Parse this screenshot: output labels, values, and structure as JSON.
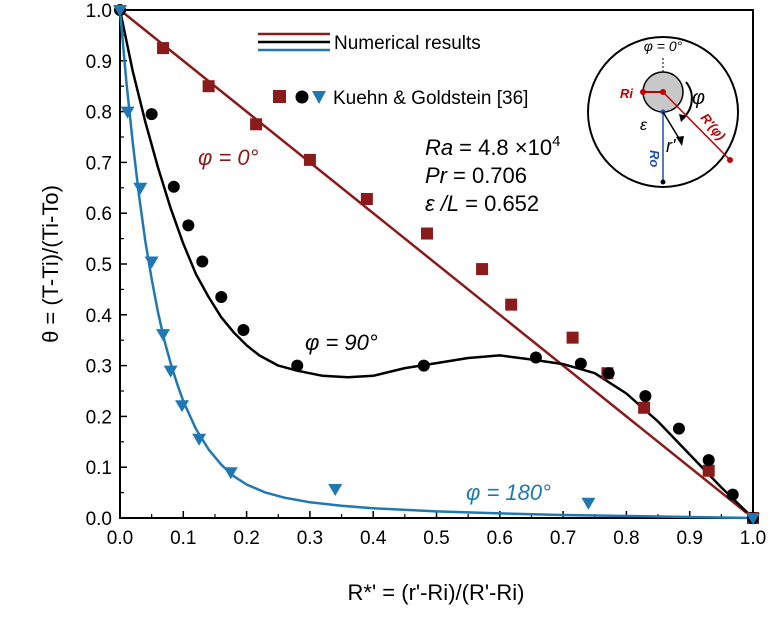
{
  "chart_data": {
    "type": "line",
    "xlabel": "R*' = (r'-Ri)/(R'-Ri)",
    "ylabel": "θ = (T-Ti)/(Ti-To)",
    "xlim": [
      0.0,
      1.0
    ],
    "ylim": [
      0.0,
      1.0
    ],
    "xticks": [
      "0.0",
      "0.1",
      "0.2",
      "0.3",
      "0.4",
      "0.5",
      "0.6",
      "0.7",
      "0.8",
      "0.9",
      "1.0"
    ],
    "yticks": [
      "0.0",
      "0.1",
      "0.2",
      "0.3",
      "0.4",
      "0.5",
      "0.6",
      "0.7",
      "0.8",
      "0.9",
      "1.0"
    ],
    "grid": false,
    "legend": {
      "position": "top",
      "entries": [
        "Numerical results",
        "Kuehn & Goldstein [36]"
      ]
    },
    "parameters": {
      "ra_label": "Ra",
      "ra_value": "= 4.8 ×10",
      "ra_exp": "4",
      "pr_label": "Pr",
      "pr_value": "= 0.706",
      "eps_label": "ε /L",
      "eps_value": "= 0.652"
    },
    "series": [
      {
        "name": "φ = 0°",
        "color": "#8b1a1a",
        "line_x": [
          0.0,
          1.0
        ],
        "line_y": [
          1.0,
          0.0
        ],
        "marker": "square",
        "exp_x": [
          0.068,
          0.14,
          0.215,
          0.3,
          0.39,
          0.485,
          0.572,
          0.618,
          0.715,
          0.77,
          0.828,
          0.93,
          1.0
        ],
        "exp_y": [
          0.925,
          0.85,
          0.775,
          0.705,
          0.628,
          0.56,
          0.49,
          0.42,
          0.355,
          0.285,
          0.217,
          0.093,
          0.0
        ]
      },
      {
        "name": "φ = 90°",
        "color": "#000000",
        "line_x": [
          0.0,
          0.02,
          0.04,
          0.06,
          0.08,
          0.1,
          0.12,
          0.14,
          0.16,
          0.18,
          0.2,
          0.22,
          0.25,
          0.28,
          0.32,
          0.36,
          0.4,
          0.45,
          0.5,
          0.55,
          0.6,
          0.65,
          0.7,
          0.75,
          0.8,
          0.85,
          0.9,
          0.95,
          1.0
        ],
        "line_y": [
          1.0,
          0.88,
          0.78,
          0.69,
          0.61,
          0.54,
          0.48,
          0.435,
          0.395,
          0.365,
          0.34,
          0.32,
          0.3,
          0.29,
          0.28,
          0.277,
          0.28,
          0.295,
          0.305,
          0.315,
          0.32,
          0.312,
          0.303,
          0.285,
          0.245,
          0.19,
          0.125,
          0.06,
          0.0
        ],
        "marker": "circle",
        "exp_x": [
          0.0,
          0.05,
          0.085,
          0.108,
          0.13,
          0.16,
          0.195,
          0.28,
          0.48,
          0.657,
          0.728,
          0.772,
          0.83,
          0.883,
          0.93,
          0.968,
          1.0
        ],
        "exp_y": [
          1.0,
          0.795,
          0.652,
          0.576,
          0.505,
          0.435,
          0.37,
          0.3,
          0.3,
          0.316,
          0.304,
          0.285,
          0.24,
          0.176,
          0.114,
          0.046,
          0.0
        ]
      },
      {
        "name": "φ = 180°",
        "color": "#1f78b4",
        "line_x": [
          0.0,
          0.01,
          0.02,
          0.03,
          0.04,
          0.05,
          0.06,
          0.07,
          0.08,
          0.09,
          0.1,
          0.12,
          0.14,
          0.16,
          0.18,
          0.2,
          0.23,
          0.26,
          0.3,
          0.35,
          0.4,
          0.5,
          0.6,
          0.7,
          0.8,
          0.9,
          1.0
        ],
        "line_y": [
          1.0,
          0.86,
          0.74,
          0.635,
          0.545,
          0.47,
          0.405,
          0.35,
          0.305,
          0.265,
          0.23,
          0.175,
          0.135,
          0.105,
          0.082,
          0.066,
          0.05,
          0.04,
          0.031,
          0.024,
          0.019,
          0.013,
          0.009,
          0.006,
          0.004,
          0.002,
          0.0
        ],
        "marker": "triangle-down",
        "exp_x": [
          0.0,
          0.012,
          0.032,
          0.05,
          0.068,
          0.08,
          0.098,
          0.125,
          0.175,
          0.34,
          0.74,
          1.0
        ],
        "exp_y": [
          1.0,
          0.8,
          0.65,
          0.505,
          0.362,
          0.29,
          0.222,
          0.156,
          0.09,
          0.057,
          0.03,
          0.0
        ]
      }
    ],
    "curve_labels": [
      {
        "text": "φ = 0°",
        "color": "#8b1a1a"
      },
      {
        "text": "φ = 90°",
        "color": "#000000"
      },
      {
        "text": "φ = 180°",
        "color": "#1f78b4"
      }
    ],
    "inset": {
      "top_label": "φ = 0°",
      "ri_label": "Ri",
      "ro_label": "Ro",
      "phi_label": "φ",
      "eps_label": "ε",
      "r_prime_label": "r'",
      "r_prime_phi_label": "R'(φ)"
    }
  }
}
